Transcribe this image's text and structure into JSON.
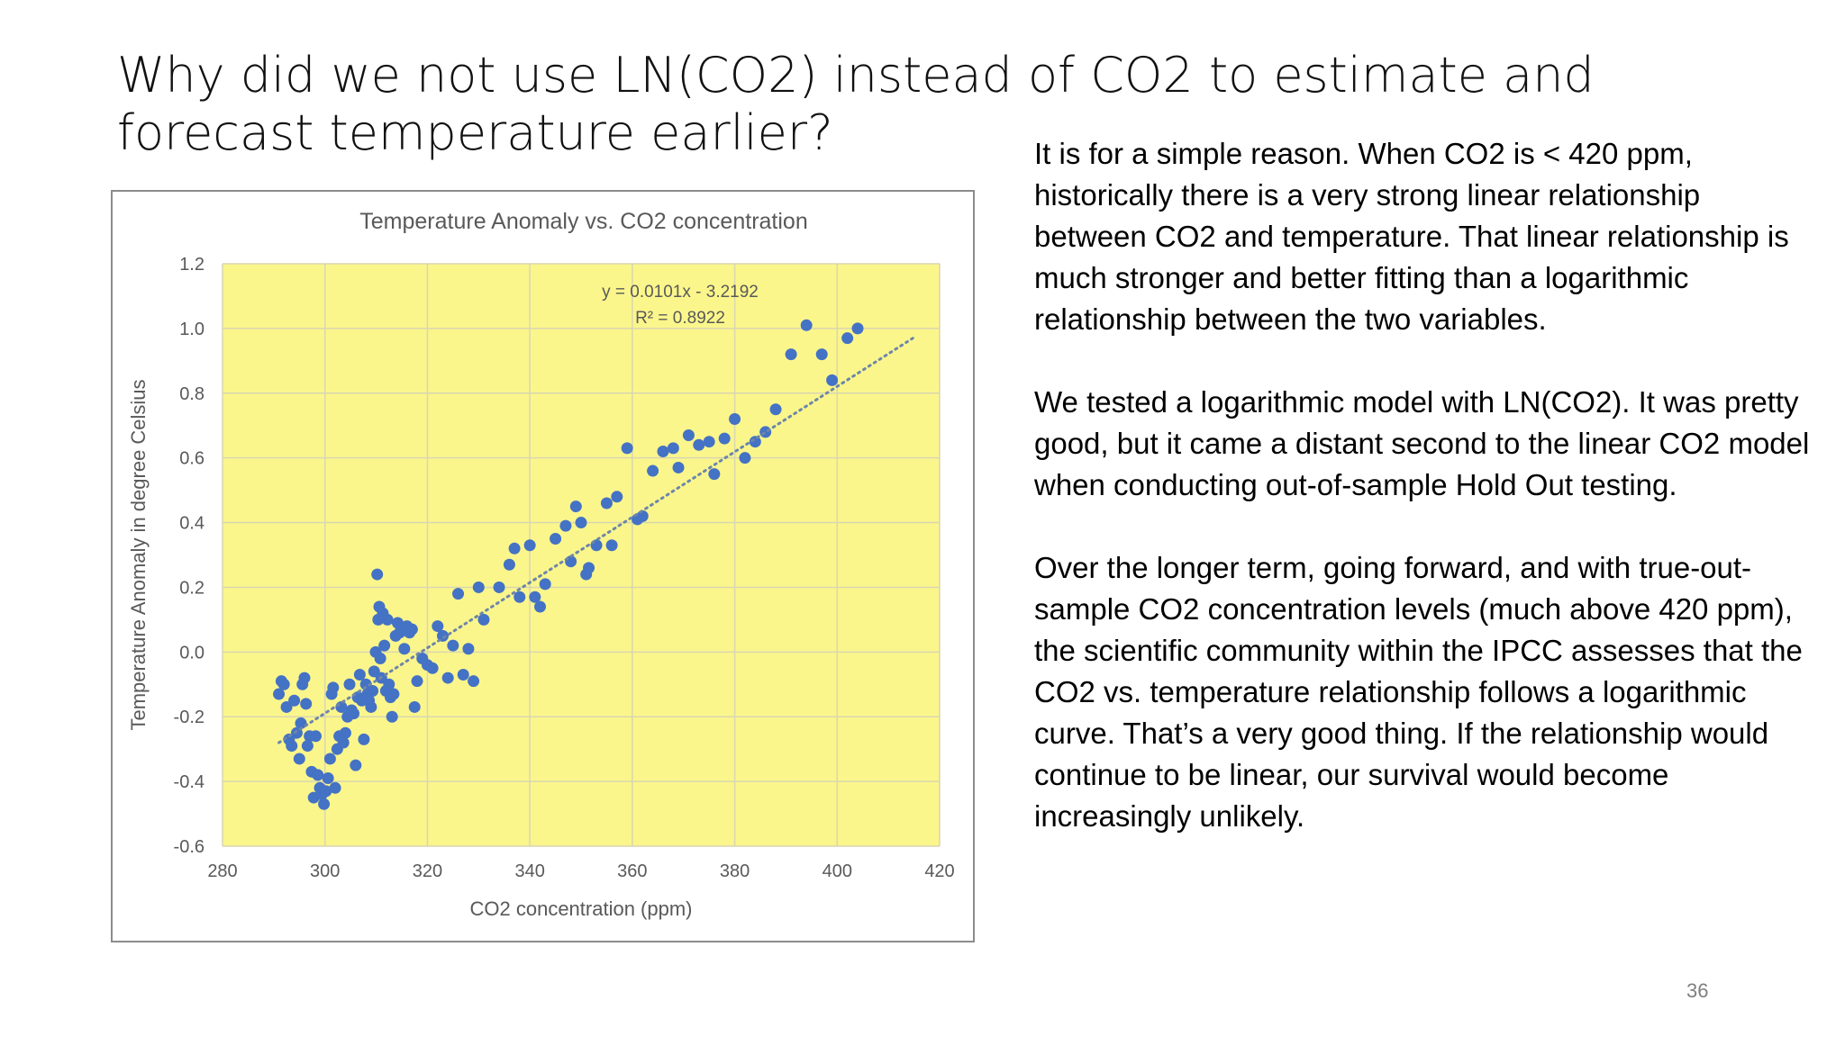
{
  "slide": {
    "title": "Why did we not use LN(CO2) instead of CO2 to estimate and forecast temperature earlier?",
    "paragraphs": [
      "It is for a simple reason. When CO2 is < 420 ppm, historically there is a very strong linear relationship between CO2 and temperature. That linear relationship is much stronger and better fitting than a logarithmic relationship between the two variables.",
      "We tested a logarithmic model with LN(CO2). It was pretty good, but it came a distant second to the linear CO2 model when conducting out-of-sample Hold Out testing.",
      "Over the longer term, going forward, and with true-out-sample CO2 concentration levels (much above 420 ppm), the scientific community within the IPCC assesses that the CO2 vs. temperature relationship follows a logarithmic curve. That’s a very good thing. If the relationship would continue to be linear, our survival would become increasingly unlikely."
    ],
    "page_number": "36"
  },
  "colors": {
    "plot_background": "#fbf68c",
    "grid": "#d9d6b0",
    "points": "#4472c4",
    "trendline": "#6d86a8",
    "axis_text": "#595959"
  },
  "chart_data": {
    "type": "scatter",
    "title": "Temperature Anomaly vs. CO2 concentration",
    "xlabel": "CO2 concentration (ppm)",
    "ylabel": "Temperature Anomaly in degree Celsius",
    "xlim": [
      280,
      420
    ],
    "ylim": [
      -0.6,
      1.2
    ],
    "xticks": [
      280,
      300,
      320,
      340,
      360,
      380,
      400,
      420
    ],
    "yticks": [
      -0.6,
      -0.4,
      -0.2,
      0.0,
      0.2,
      0.4,
      0.6,
      0.8,
      1.0,
      1.2
    ],
    "ytick_labels": [
      "-0.6",
      "-0.4",
      "-0.2",
      "0.0",
      "0.2",
      "0.4",
      "0.6",
      "0.8",
      "1.0",
      "1.2"
    ],
    "grid": true,
    "legend": "none",
    "trendline": {
      "slope": 0.0101,
      "intercept": -3.2192,
      "x_range": [
        291,
        415
      ],
      "equation": "y = 0.0101x - 3.2192",
      "r_squared": "R² = 0.8922"
    },
    "points": [
      [
        291,
        -0.13
      ],
      [
        291.5,
        -0.09
      ],
      [
        292,
        -0.1
      ],
      [
        292.5,
        -0.17
      ],
      [
        293,
        -0.27
      ],
      [
        293.5,
        -0.29
      ],
      [
        294,
        -0.15
      ],
      [
        294.5,
        -0.25
      ],
      [
        295,
        -0.33
      ],
      [
        295.3,
        -0.22
      ],
      [
        295.6,
        -0.1
      ],
      [
        296,
        -0.08
      ],
      [
        296.3,
        -0.16
      ],
      [
        296.6,
        -0.29
      ],
      [
        297,
        -0.26
      ],
      [
        297.4,
        -0.37
      ],
      [
        297.8,
        -0.45
      ],
      [
        298.2,
        -0.26
      ],
      [
        298.6,
        -0.38
      ],
      [
        299,
        -0.42
      ],
      [
        299.4,
        -0.44
      ],
      [
        299.8,
        -0.47
      ],
      [
        300.2,
        -0.43
      ],
      [
        300.6,
        -0.39
      ],
      [
        301,
        -0.33
      ],
      [
        301.3,
        -0.13
      ],
      [
        301.6,
        -0.11
      ],
      [
        302,
        -0.42
      ],
      [
        302.4,
        -0.3
      ],
      [
        302.8,
        -0.26
      ],
      [
        303.2,
        -0.17
      ],
      [
        303.6,
        -0.28
      ],
      [
        304,
        -0.25
      ],
      [
        304.4,
        -0.2
      ],
      [
        304.8,
        -0.1
      ],
      [
        305.2,
        -0.18
      ],
      [
        305.6,
        -0.19
      ],
      [
        306,
        -0.35
      ],
      [
        306.4,
        -0.14
      ],
      [
        306.8,
        -0.07
      ],
      [
        307.2,
        -0.15
      ],
      [
        307.6,
        -0.27
      ],
      [
        308,
        -0.1
      ],
      [
        308.3,
        -0.13
      ],
      [
        308.6,
        -0.15
      ],
      [
        309,
        -0.17
      ],
      [
        309.3,
        -0.12
      ],
      [
        309.6,
        -0.06
      ],
      [
        309.9,
        0.0
      ],
      [
        310.2,
        0.24
      ],
      [
        310.4,
        0.1
      ],
      [
        310.6,
        0.14
      ],
      [
        310.8,
        -0.02
      ],
      [
        311,
        -0.08
      ],
      [
        311.3,
        0.12
      ],
      [
        311.6,
        0.02
      ],
      [
        311.9,
        -0.12
      ],
      [
        312.2,
        0.1
      ],
      [
        312.5,
        -0.1
      ],
      [
        312.8,
        -0.14
      ],
      [
        313.1,
        -0.2
      ],
      [
        313.4,
        -0.13
      ],
      [
        313.8,
        0.05
      ],
      [
        314.2,
        0.09
      ],
      [
        314.6,
        0.06
      ],
      [
        315,
        0.07
      ],
      [
        315.5,
        0.01
      ],
      [
        316,
        0.08
      ],
      [
        316.5,
        0.06
      ],
      [
        317,
        0.07
      ],
      [
        317.5,
        -0.17
      ],
      [
        318,
        -0.09
      ],
      [
        319,
        -0.02
      ],
      [
        320,
        -0.04
      ],
      [
        321,
        -0.05
      ],
      [
        322,
        0.08
      ],
      [
        323,
        0.05
      ],
      [
        324,
        -0.08
      ],
      [
        325,
        0.02
      ],
      [
        326,
        0.18
      ],
      [
        327,
        -0.07
      ],
      [
        328,
        0.01
      ],
      [
        329,
        -0.09
      ],
      [
        330,
        0.2
      ],
      [
        331,
        0.1
      ],
      [
        334,
        0.2
      ],
      [
        336,
        0.27
      ],
      [
        337,
        0.32
      ],
      [
        338,
        0.17
      ],
      [
        340,
        0.33
      ],
      [
        341,
        0.17
      ],
      [
        342,
        0.14
      ],
      [
        343,
        0.21
      ],
      [
        345,
        0.35
      ],
      [
        347,
        0.39
      ],
      [
        348,
        0.28
      ],
      [
        349,
        0.45
      ],
      [
        350,
        0.4
      ],
      [
        351,
        0.24
      ],
      [
        351.5,
        0.26
      ],
      [
        353,
        0.33
      ],
      [
        355,
        0.46
      ],
      [
        356,
        0.33
      ],
      [
        357,
        0.48
      ],
      [
        359,
        0.63
      ],
      [
        361,
        0.41
      ],
      [
        362,
        0.42
      ],
      [
        364,
        0.56
      ],
      [
        366,
        0.62
      ],
      [
        368,
        0.63
      ],
      [
        369,
        0.57
      ],
      [
        371,
        0.67
      ],
      [
        373,
        0.64
      ],
      [
        375,
        0.65
      ],
      [
        376,
        0.55
      ],
      [
        378,
        0.66
      ],
      [
        380,
        0.72
      ],
      [
        382,
        0.6
      ],
      [
        384,
        0.65
      ],
      [
        386,
        0.68
      ],
      [
        388,
        0.75
      ],
      [
        391,
        0.92
      ],
      [
        394,
        1.01
      ],
      [
        397,
        0.92
      ],
      [
        399,
        0.84
      ],
      [
        402,
        0.97
      ],
      [
        404,
        1.0
      ]
    ]
  }
}
